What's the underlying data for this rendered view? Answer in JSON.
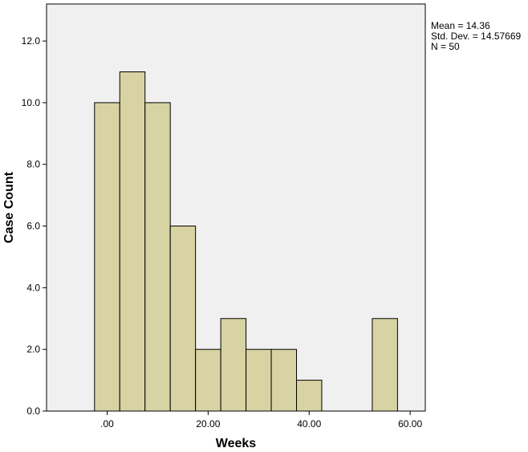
{
  "chart_data": {
    "type": "bar",
    "xlabel": "Weeks",
    "ylabel": "Case Count",
    "xlim": [
      -12,
      63
    ],
    "ylim": [
      0,
      13.2
    ],
    "bin_width": 5,
    "bins": [
      {
        "start": -2.5,
        "end": 2.5,
        "count": 10
      },
      {
        "start": 2.5,
        "end": 7.5,
        "count": 11
      },
      {
        "start": 7.5,
        "end": 12.5,
        "count": 10
      },
      {
        "start": 12.5,
        "end": 17.5,
        "count": 6
      },
      {
        "start": 17.5,
        "end": 22.5,
        "count": 2
      },
      {
        "start": 22.5,
        "end": 27.5,
        "count": 3
      },
      {
        "start": 27.5,
        "end": 32.5,
        "count": 2
      },
      {
        "start": 32.5,
        "end": 37.5,
        "count": 2
      },
      {
        "start": 37.5,
        "end": 42.5,
        "count": 1
      },
      {
        "start": 52.5,
        "end": 57.5,
        "count": 3
      }
    ],
    "x_ticks": [
      {
        "value": 0,
        "label": ".00"
      },
      {
        "value": 20,
        "label": "20.00"
      },
      {
        "value": 40,
        "label": "40.00"
      },
      {
        "value": 60,
        "label": "60.00"
      }
    ],
    "y_ticks": [
      {
        "value": 0,
        "label": "0.0"
      },
      {
        "value": 2,
        "label": "2.0"
      },
      {
        "value": 4,
        "label": "4.0"
      },
      {
        "value": 6,
        "label": "6.0"
      },
      {
        "value": 8,
        "label": "8.0"
      },
      {
        "value": 10,
        "label": "10.0"
      },
      {
        "value": 12,
        "label": "12.0"
      }
    ],
    "grid": false,
    "legend": "none",
    "colors": {
      "bar_fill": "#d8d3a3",
      "bar_stroke": "#000000",
      "plot_background": "#f0f0f0",
      "axis": "#000000"
    }
  },
  "stats": {
    "mean": "Mean = 14.36",
    "std_dev": "Std. Dev. = 14.57669",
    "n": "N = 50"
  }
}
